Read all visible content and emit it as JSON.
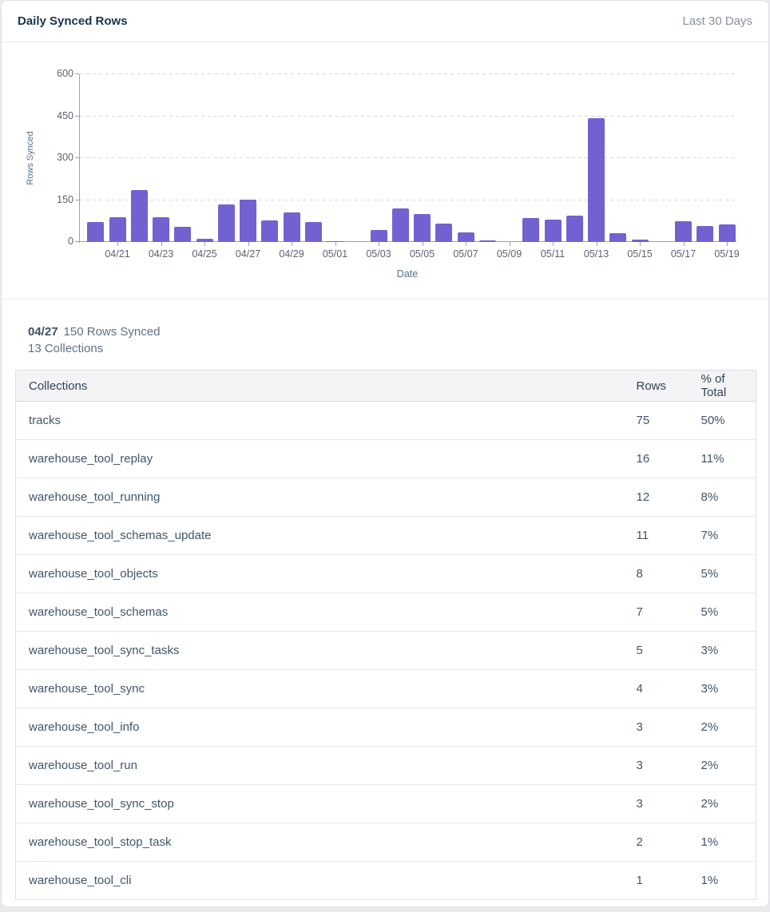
{
  "header": {
    "title": "Daily Synced Rows",
    "period": "Last 30 Days"
  },
  "chart_data": {
    "type": "bar",
    "title": "Daily Synced Rows",
    "xlabel": "Date",
    "ylabel": "Rows Synced",
    "ylim": [
      0,
      600
    ],
    "yticks": [
      0,
      150,
      300,
      450,
      600
    ],
    "grid": "horizontal-dashed",
    "legend": "none",
    "bar_color": "#7262d1",
    "categories": [
      "04/20",
      "04/21",
      "04/22",
      "04/23",
      "04/24",
      "04/25",
      "04/26",
      "04/27",
      "04/28",
      "04/29",
      "04/30",
      "05/01",
      "05/02",
      "05/03",
      "05/04",
      "05/05",
      "05/06",
      "05/07",
      "05/08",
      "05/09",
      "05/10",
      "05/11",
      "05/12",
      "05/13",
      "05/14",
      "05/15",
      "05/16",
      "05/17",
      "05/18",
      "05/19"
    ],
    "values": [
      72,
      88,
      185,
      88,
      55,
      10,
      135,
      150,
      76,
      105,
      70,
      3,
      0,
      42,
      120,
      100,
      65,
      35,
      5,
      0,
      85,
      80,
      95,
      443,
      30,
      8,
      0,
      75,
      58,
      62
    ],
    "xtick_labels": [
      "04/21",
      "04/23",
      "04/25",
      "04/27",
      "04/29",
      "05/01",
      "05/03",
      "05/05",
      "05/07",
      "05/09",
      "05/11",
      "05/13",
      "05/15",
      "05/17",
      "05/19"
    ]
  },
  "detail": {
    "date": "04/27",
    "rows_synced": "150 Rows Synced",
    "collections": "13 Collections"
  },
  "table": {
    "columns": [
      "Collections",
      "Rows",
      "% of Total"
    ],
    "rows": [
      {
        "collection": "tracks",
        "rows": "75",
        "pct": "50%"
      },
      {
        "collection": "warehouse_tool_replay",
        "rows": "16",
        "pct": "11%"
      },
      {
        "collection": "warehouse_tool_running",
        "rows": "12",
        "pct": "8%"
      },
      {
        "collection": "warehouse_tool_schemas_update",
        "rows": "11",
        "pct": "7%"
      },
      {
        "collection": "warehouse_tool_objects",
        "rows": "8",
        "pct": "5%"
      },
      {
        "collection": "warehouse_tool_schemas",
        "rows": "7",
        "pct": "5%"
      },
      {
        "collection": "warehouse_tool_sync_tasks",
        "rows": "5",
        "pct": "3%"
      },
      {
        "collection": "warehouse_tool_sync",
        "rows": "4",
        "pct": "3%"
      },
      {
        "collection": "warehouse_tool_info",
        "rows": "3",
        "pct": "2%"
      },
      {
        "collection": "warehouse_tool_run",
        "rows": "3",
        "pct": "2%"
      },
      {
        "collection": "warehouse_tool_sync_stop",
        "rows": "3",
        "pct": "2%"
      },
      {
        "collection": "warehouse_tool_stop_task",
        "rows": "2",
        "pct": "1%"
      },
      {
        "collection": "warehouse_tool_cli",
        "rows": "1",
        "pct": "1%"
      }
    ]
  },
  "colors": {
    "bar": "#7262d1",
    "title_text": "#1d3350",
    "muted_text": "#8a909b",
    "axis_line": "#9ba1ab",
    "tick_text": "#5c636e",
    "axis_title_text": "#54718f",
    "gridline": "#d6d6db",
    "card_border": "#e3e3e8",
    "table_header_bg": "#f4f4f6",
    "cell_text": "#40556a"
  }
}
